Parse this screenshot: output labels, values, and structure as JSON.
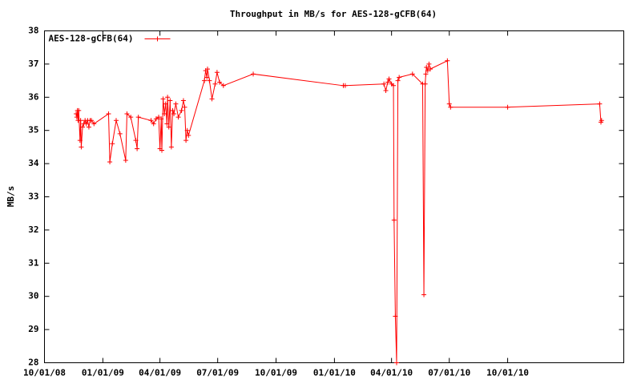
{
  "chart_data": {
    "type": "line",
    "title": "Throughput in MB/s for AES-128-gCFB(64)",
    "y_label": "MB/s",
    "legend": "top-left",
    "xlim": [
      "10/01/08",
      "04/02/11"
    ],
    "xticks": [
      "10/01/08",
      "01/01/09",
      "04/01/09",
      "07/01/09",
      "10/01/09",
      "01/01/10",
      "04/01/10",
      "07/01/10",
      "10/01/10"
    ],
    "ylim": [
      28,
      38
    ],
    "yticks": [
      28,
      29,
      30,
      31,
      32,
      33,
      34,
      35,
      36,
      37,
      38
    ],
    "series": [
      {
        "name": "AES-128-gCFB(64)",
        "color": "#ff0000",
        "x": [
          "11/20/08",
          "11/21/08",
          "11/22/08",
          "11/23/08",
          "11/24/08",
          "11/26/08",
          "11/27/08",
          "11/28/08",
          "11/30/08",
          "12/02/08",
          "12/04/08",
          "12/06/08",
          "12/08/08",
          "12/10/08",
          "12/12/08",
          "12/14/08",
          "12/18/08",
          "01/10/09",
          "01/12/09",
          "01/16/09",
          "01/22/09",
          "01/28/09",
          "02/06/09",
          "02/08/09",
          "02/14/09",
          "02/22/09",
          "02/24/09",
          "02/26/09",
          "03/18/09",
          "03/22/09",
          "03/26/09",
          "03/30/09",
          "04/01/09",
          "04/03/09",
          "04/04/09",
          "04/06/09",
          "04/08/09",
          "04/10/09",
          "04/12/09",
          "04/13/09",
          "04/15/09",
          "04/17/09",
          "04/19/09",
          "04/21/09",
          "04/23/09",
          "04/26/09",
          "04/30/09",
          "05/05/09",
          "05/08/09",
          "05/10/09",
          "05/12/09",
          "05/14/09",
          "05/16/09",
          "06/10/09",
          "06/12/09",
          "06/14/09",
          "06/15/09",
          "06/18/09",
          "06/22/09",
          "06/27/09",
          "06/30/09",
          "07/04/09",
          "07/10/09",
          "08/26/09",
          "01/15/10",
          "01/18/10",
          "03/20/10",
          "03/23/10",
          "03/26/10",
          "03/28/10",
          "04/01/10",
          "04/04/10",
          "04/05/10",
          "04/07/10",
          "04/09/10",
          "04/11/10",
          "04/13/10",
          "05/04/10",
          "05/20/10",
          "05/22/10",
          "05/24/10",
          "05/25/10",
          "05/26/10",
          "05/28/10",
          "05/30/10",
          "06/01/10",
          "06/28/10",
          "07/01/10",
          "07/03/10",
          "10/01/10",
          "02/23/11",
          "02/25/11",
          "02/26/11"
        ],
        "values": [
          35.5,
          35.4,
          35.6,
          35.3,
          35.6,
          34.7,
          35.3,
          34.5,
          35.1,
          35.2,
          35.3,
          35.2,
          35.3,
          35.1,
          35.3,
          35.3,
          35.2,
          35.5,
          34.05,
          34.6,
          35.3,
          34.9,
          34.1,
          35.5,
          35.4,
          34.7,
          34.45,
          35.4,
          35.3,
          35.2,
          35.35,
          35.4,
          34.45,
          35.35,
          34.4,
          35.95,
          35.5,
          35.8,
          35.2,
          36.0,
          35.1,
          35.9,
          34.5,
          35.6,
          35.5,
          35.8,
          35.4,
          35.6,
          35.9,
          35.7,
          34.7,
          35.0,
          34.85,
          36.5,
          36.8,
          36.6,
          36.85,
          36.5,
          35.95,
          36.4,
          36.75,
          36.45,
          36.35,
          36.7,
          36.35,
          36.35,
          36.4,
          36.2,
          36.45,
          36.55,
          36.4,
          36.35,
          32.3,
          29.4,
          28.0,
          36.5,
          36.6,
          36.7,
          36.4,
          30.05,
          36.4,
          36.7,
          36.9,
          36.8,
          37.0,
          36.85,
          37.1,
          35.8,
          35.7,
          35.7,
          35.8,
          35.25,
          35.3
        ]
      }
    ]
  }
}
